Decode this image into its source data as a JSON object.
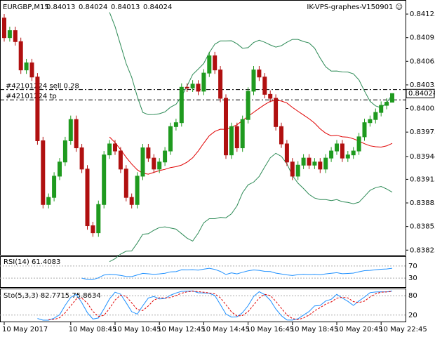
{
  "chart_data": {
    "type": "candlestick",
    "symbol": "EURGBP,M15",
    "expert": "IK-VPS-graphes-V150901 ☺",
    "open": [
      0.8412,
      0.84095,
      0.84104,
      0.8409,
      0.84054,
      0.84063,
      0.84045,
      0.83964,
      0.83883,
      0.83892,
      0.83919,
      0.83937,
      0.83964,
      0.83991,
      0.83955,
      0.83928,
      0.83856,
      0.83847,
      0.83883,
      0.83946,
      0.8396,
      0.83951,
      0.83928,
      0.83892,
      0.83883,
      0.83919,
      0.83955,
      0.83942,
      0.83928,
      0.83937,
      0.83951,
      0.83982,
      0.83987,
      0.84032,
      0.84031,
      0.84036,
      0.84027,
      0.8405,
      0.84072,
      0.84054,
      0.84018,
      0.83946,
      0.83982,
      0.83955,
      0.83991,
      0.84027,
      0.84054,
      0.84045,
      0.84023,
      0.84018,
      0.83982,
      0.8396,
      0.83937,
      0.83919,
      0.83933,
      0.83942,
      0.83933,
      0.83937,
      0.83928,
      0.83942,
      0.83951,
      0.8396,
      0.83942,
      0.83946,
      0.83951,
      0.83969,
      0.83987,
      0.83991,
      0.84,
      0.84009,
      0.84013
    ],
    "high": [
      0.84125,
      0.84109,
      0.84109,
      0.84095,
      0.84068,
      0.84068,
      0.8405,
      0.83969,
      0.83897,
      0.83924,
      0.83942,
      0.83969,
      0.83996,
      0.83996,
      0.8396,
      0.83933,
      0.83861,
      0.83888,
      0.83951,
      0.83965,
      0.83965,
      0.83956,
      0.83933,
      0.83897,
      0.83924,
      0.8396,
      0.8396,
      0.83947,
      0.83942,
      0.83956,
      0.83987,
      0.83992,
      0.84037,
      0.84037,
      0.84041,
      0.84041,
      0.84055,
      0.84077,
      0.84077,
      0.84059,
      0.84023,
      0.83987,
      0.83987,
      0.83996,
      0.84032,
      0.84059,
      0.84059,
      0.8405,
      0.84028,
      0.84023,
      0.83987,
      0.83965,
      0.83942,
      0.83938,
      0.83947,
      0.83947,
      0.83942,
      0.83942,
      0.83947,
      0.83956,
      0.83965,
      0.83965,
      0.83951,
      0.83956,
      0.83974,
      0.83992,
      0.83996,
      0.84005,
      0.84014,
      0.84018,
      0.84024
    ],
    "low": [
      0.8409,
      0.8409,
      0.84085,
      0.84049,
      0.84049,
      0.8404,
      0.83959,
      0.83878,
      0.83878,
      0.83887,
      0.83914,
      0.83932,
      0.83959,
      0.8395,
      0.83923,
      0.83851,
      0.83842,
      0.83842,
      0.83878,
      0.83941,
      0.83946,
      0.83923,
      0.83887,
      0.83878,
      0.83878,
      0.83914,
      0.83937,
      0.83923,
      0.83923,
      0.83932,
      0.83946,
      0.83977,
      0.83982,
      0.84026,
      0.84026,
      0.84022,
      0.84022,
      0.84045,
      0.84049,
      0.84013,
      0.83941,
      0.83941,
      0.8395,
      0.8395,
      0.83986,
      0.84022,
      0.8404,
      0.84018,
      0.84013,
      0.83977,
      0.83955,
      0.83932,
      0.83914,
      0.83914,
      0.83928,
      0.83928,
      0.83928,
      0.83923,
      0.83923,
      0.83937,
      0.83946,
      0.83937,
      0.83937,
      0.83941,
      0.83946,
      0.83964,
      0.83982,
      0.83986,
      0.83995,
      0.84004,
      0.84013
    ],
    "close": [
      0.84095,
      0.84104,
      0.8409,
      0.84054,
      0.84063,
      0.84045,
      0.83964,
      0.83883,
      0.83892,
      0.83919,
      0.83937,
      0.83964,
      0.83991,
      0.83955,
      0.83928,
      0.83856,
      0.83847,
      0.83883,
      0.83946,
      0.8396,
      0.83951,
      0.83928,
      0.83892,
      0.83883,
      0.83919,
      0.83955,
      0.83942,
      0.83928,
      0.83937,
      0.83951,
      0.83982,
      0.83987,
      0.84032,
      0.84031,
      0.84036,
      0.84027,
      0.8405,
      0.84072,
      0.84054,
      0.84018,
      0.83946,
      0.83982,
      0.83955,
      0.83991,
      0.84027,
      0.84054,
      0.84045,
      0.84023,
      0.84018,
      0.83982,
      0.8396,
      0.83937,
      0.83919,
      0.83933,
      0.83942,
      0.83933,
      0.83937,
      0.83928,
      0.83942,
      0.83951,
      0.8396,
      0.83942,
      0.83946,
      0.83951,
      0.83969,
      0.83987,
      0.83991,
      0.84,
      0.84009,
      0.84013,
      0.84024
    ],
    "categories": [
      "10 May 2017",
      null,
      null,
      null,
      null,
      null,
      null,
      null,
      null,
      null,
      null,
      null,
      "10 May 08:45",
      null,
      null,
      null,
      null,
      null,
      null,
      null,
      "10 May 10:45",
      null,
      null,
      null,
      null,
      null,
      null,
      null,
      "10 May 12:45",
      null,
      null,
      null,
      null,
      null,
      null,
      null,
      "10 May 14:45",
      null,
      null,
      null,
      null,
      null,
      null,
      null,
      "10 May 16:45",
      null,
      null,
      null,
      null,
      null,
      null,
      null,
      "10 May 18:45",
      null,
      null,
      null,
      null,
      null,
      null,
      null,
      "10 May 20:45",
      null,
      null,
      null,
      null,
      null,
      null,
      null,
      "10 May 22:45",
      null,
      null
    ],
    "up_color": "#1f9a1f",
    "down_color": "#b01010",
    "ylim": [
      0.83819,
      0.84142
    ],
    "yticks": [
      0.84125,
      0.84095,
      0.84065,
      0.84035,
      0.84005,
      0.83975,
      0.83944,
      0.83915,
      0.83885,
      0.83855,
      0.83825
    ],
    "trade_lines": [
      {
        "label": "#42101224 sell 0.28",
        "value": 0.84029
      },
      {
        "label": "#42101224 tp",
        "value": 0.84016
      }
    ],
    "rsi": {
      "label": "RSI(14) 61.4083",
      "ylim": [
        0,
        100
      ],
      "yticks": [
        70,
        30
      ],
      "color": "#1e90ff"
    },
    "sto": {
      "label": "Sto(5,3,3) 82.7715 75.8634",
      "ylim": [
        0,
        100
      ],
      "yticks": [
        80,
        20
      ],
      "color": "#1e90ff",
      "signal_color": "#e00000"
    }
  }
}
